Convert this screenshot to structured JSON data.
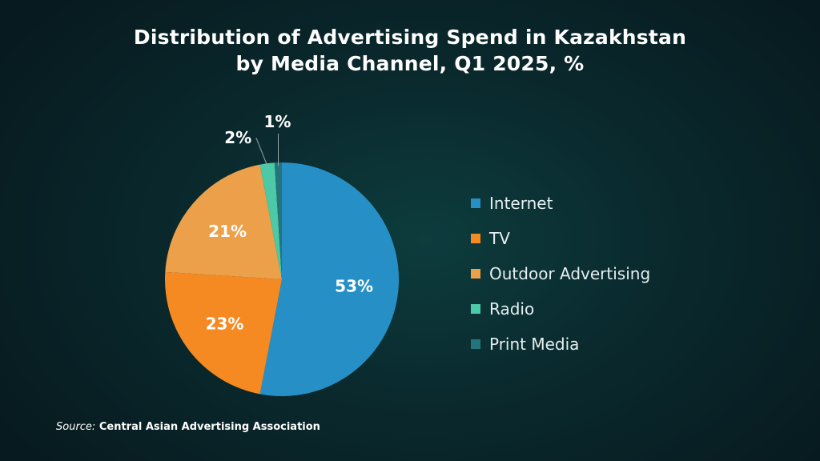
{
  "title_line1": "Distribution of Advertising Spend in Kazakhstan",
  "title_line2": "by Media Channel, Q1 2025, %",
  "source_prefix": "Source:",
  "source_text": " Central Asian Advertising Association",
  "chart_data": {
    "type": "pie",
    "title": "Distribution of Advertising Spend in Kazakhstan by Media Channel, Q1 2025, %",
    "unit": "%",
    "legend_placement": "right",
    "slices": [
      {
        "name": "Internet",
        "value": 53,
        "label": "53%",
        "color": "#2690c6"
      },
      {
        "name": "TV",
        "value": 23,
        "label": "23%",
        "color": "#f58a22"
      },
      {
        "name": "Outdoor Advertising",
        "value": 21,
        "label": "21%",
        "color": "#eca04a"
      },
      {
        "name": "Radio",
        "value": 2,
        "label": "2%",
        "color": "#4cc9a6"
      },
      {
        "name": "Print Media",
        "value": 1,
        "label": "1%",
        "color": "#23757b"
      }
    ]
  }
}
